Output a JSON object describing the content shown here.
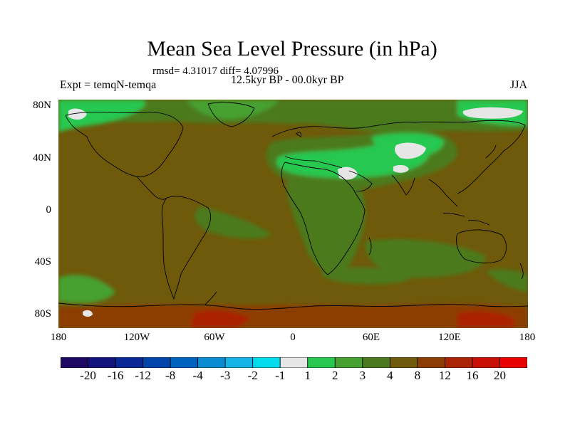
{
  "title": "Mean Sea Level Pressure (in hPa)",
  "stats": "rmsd= 4.31017  diff= 4.07996",
  "period": "12.5kyr BP - 00.0kyr BP",
  "experiment": "Expt = temqN-temqa",
  "season": "JJA",
  "lat_labels": [
    "80N",
    "40N",
    "0",
    "40S",
    "80S"
  ],
  "lon_labels": [
    "180",
    "120W",
    "60W",
    "0",
    "60E",
    "120E",
    "180"
  ],
  "colorbar": {
    "labels": [
      "-20",
      "-16",
      "-12",
      "-8",
      "-4",
      "-3",
      "-2",
      "-1",
      "1",
      "2",
      "3",
      "4",
      "8",
      "12",
      "16",
      "20"
    ],
    "colors": [
      "#1e0a64",
      "#14147d",
      "#0a2896",
      "#0046aa",
      "#0064be",
      "#0a8cd2",
      "#14b4e6",
      "#00dcee",
      "#e6e6e6",
      "#28c850",
      "#46a032",
      "#4b7a1e",
      "#6e5a0a",
      "#8c3c05",
      "#aa2305",
      "#c80f05",
      "#e60000"
    ]
  },
  "colors": {
    "base": "#6e5a0a",
    "dark_green": "#4b7a1e",
    "mid_green": "#46a032",
    "bright_green": "#28c850",
    "white": "#e6e6e6",
    "rust": "#8c3c05",
    "red": "#aa2305"
  }
}
